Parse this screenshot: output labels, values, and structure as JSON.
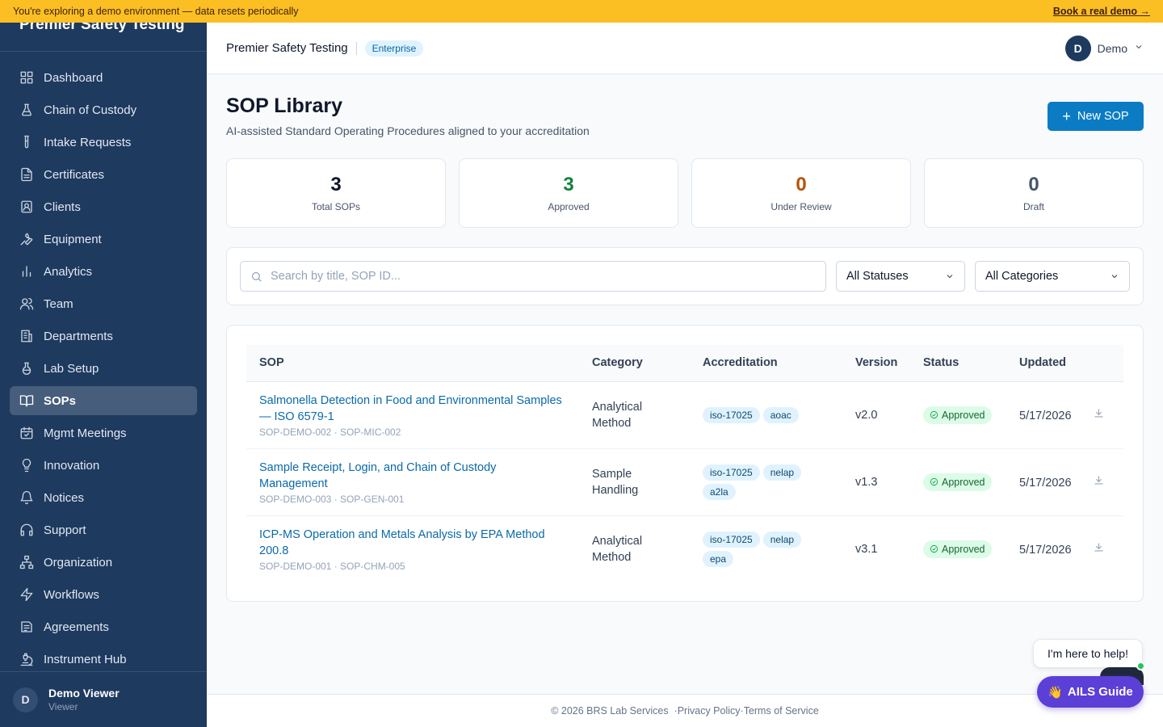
{
  "banner": {
    "message": "You're exploring a demo environment — data resets periodically",
    "cta": "Book a real demo →"
  },
  "sidebar": {
    "brand": "Premier Safety Testing",
    "items": [
      {
        "label": "Dashboard",
        "icon": "dashboard-icon"
      },
      {
        "label": "Chain of Custody",
        "icon": "flask-icon"
      },
      {
        "label": "Intake Requests",
        "icon": "test-tube-icon"
      },
      {
        "label": "Certificates",
        "icon": "document-icon"
      },
      {
        "label": "Clients",
        "icon": "contact-icon"
      },
      {
        "label": "Equipment",
        "icon": "wrench-icon"
      },
      {
        "label": "Analytics",
        "icon": "bar-chart-icon"
      },
      {
        "label": "Team",
        "icon": "users-icon"
      },
      {
        "label": "Departments",
        "icon": "building-icon"
      },
      {
        "label": "Lab Setup",
        "icon": "beaker-icon"
      },
      {
        "label": "SOPs",
        "icon": "book-open-icon",
        "active": true
      },
      {
        "label": "Mgmt Meetings",
        "icon": "calendar-icon"
      },
      {
        "label": "Innovation",
        "icon": "lightbulb-icon"
      },
      {
        "label": "Notices",
        "icon": "bell-icon"
      },
      {
        "label": "Support",
        "icon": "headphones-icon"
      },
      {
        "label": "Organization",
        "icon": "org-chart-icon"
      },
      {
        "label": "Workflows",
        "icon": "lightning-icon"
      },
      {
        "label": "Agreements",
        "icon": "agreement-icon"
      },
      {
        "label": "Instrument Hub",
        "icon": "instrument-icon"
      }
    ],
    "user": {
      "initial": "D",
      "name": "Demo Viewer",
      "role": "Viewer"
    }
  },
  "header": {
    "org_name": "Premier Safety Testing",
    "plan": "Enterprise",
    "user_initial": "D",
    "user_name": "Demo"
  },
  "page": {
    "title": "SOP Library",
    "subtitle": "AI-assisted Standard Operating Procedures aligned to your accreditation",
    "new_button": "New SOP"
  },
  "stats": [
    {
      "value": "3",
      "label": "Total SOPs",
      "color": "#0f172a"
    },
    {
      "value": "3",
      "label": "Approved",
      "color": "#15803d"
    },
    {
      "value": "0",
      "label": "Under Review",
      "color": "#b45309"
    },
    {
      "value": "0",
      "label": "Draft",
      "color": "#475569"
    }
  ],
  "filters": {
    "search_placeholder": "Search by title, SOP ID...",
    "status_select": "All Statuses",
    "category_select": "All Categories"
  },
  "table": {
    "columns": [
      "SOP",
      "Category",
      "Accreditation",
      "Version",
      "Status",
      "Updated"
    ],
    "rows": [
      {
        "title": "Salmonella Detection in Food and Environmental Samples — ISO 6579-1",
        "ids": "SOP-DEMO-002 · SOP-MIC-002",
        "category": "Analytical Method",
        "tags": [
          "iso-17025",
          "aoac"
        ],
        "version": "v2.0",
        "status": "Approved",
        "updated": "5/17/2026"
      },
      {
        "title": "Sample Receipt, Login, and Chain of Custody Management",
        "ids": "SOP-DEMO-003 · SOP-GEN-001",
        "category": "Sample Handling",
        "tags": [
          "iso-17025",
          "nelap",
          "a2la"
        ],
        "version": "v1.3",
        "status": "Approved",
        "updated": "5/17/2026"
      },
      {
        "title": "ICP-MS Operation and Metals Analysis by EPA Method 200.8",
        "ids": "SOP-DEMO-001 · SOP-CHM-005",
        "category": "Analytical Method",
        "tags": [
          "iso-17025",
          "nelap",
          "epa"
        ],
        "version": "v3.1",
        "status": "Approved",
        "updated": "5/17/2026"
      }
    ]
  },
  "footer": {
    "copyright": "© 2026 BRS Lab Services",
    "privacy": "Privacy Policy",
    "terms": "Terms of Service"
  },
  "helper": {
    "bubble": "I'm here to help!",
    "button": "AILS Guide",
    "button_emoji": "👋"
  }
}
